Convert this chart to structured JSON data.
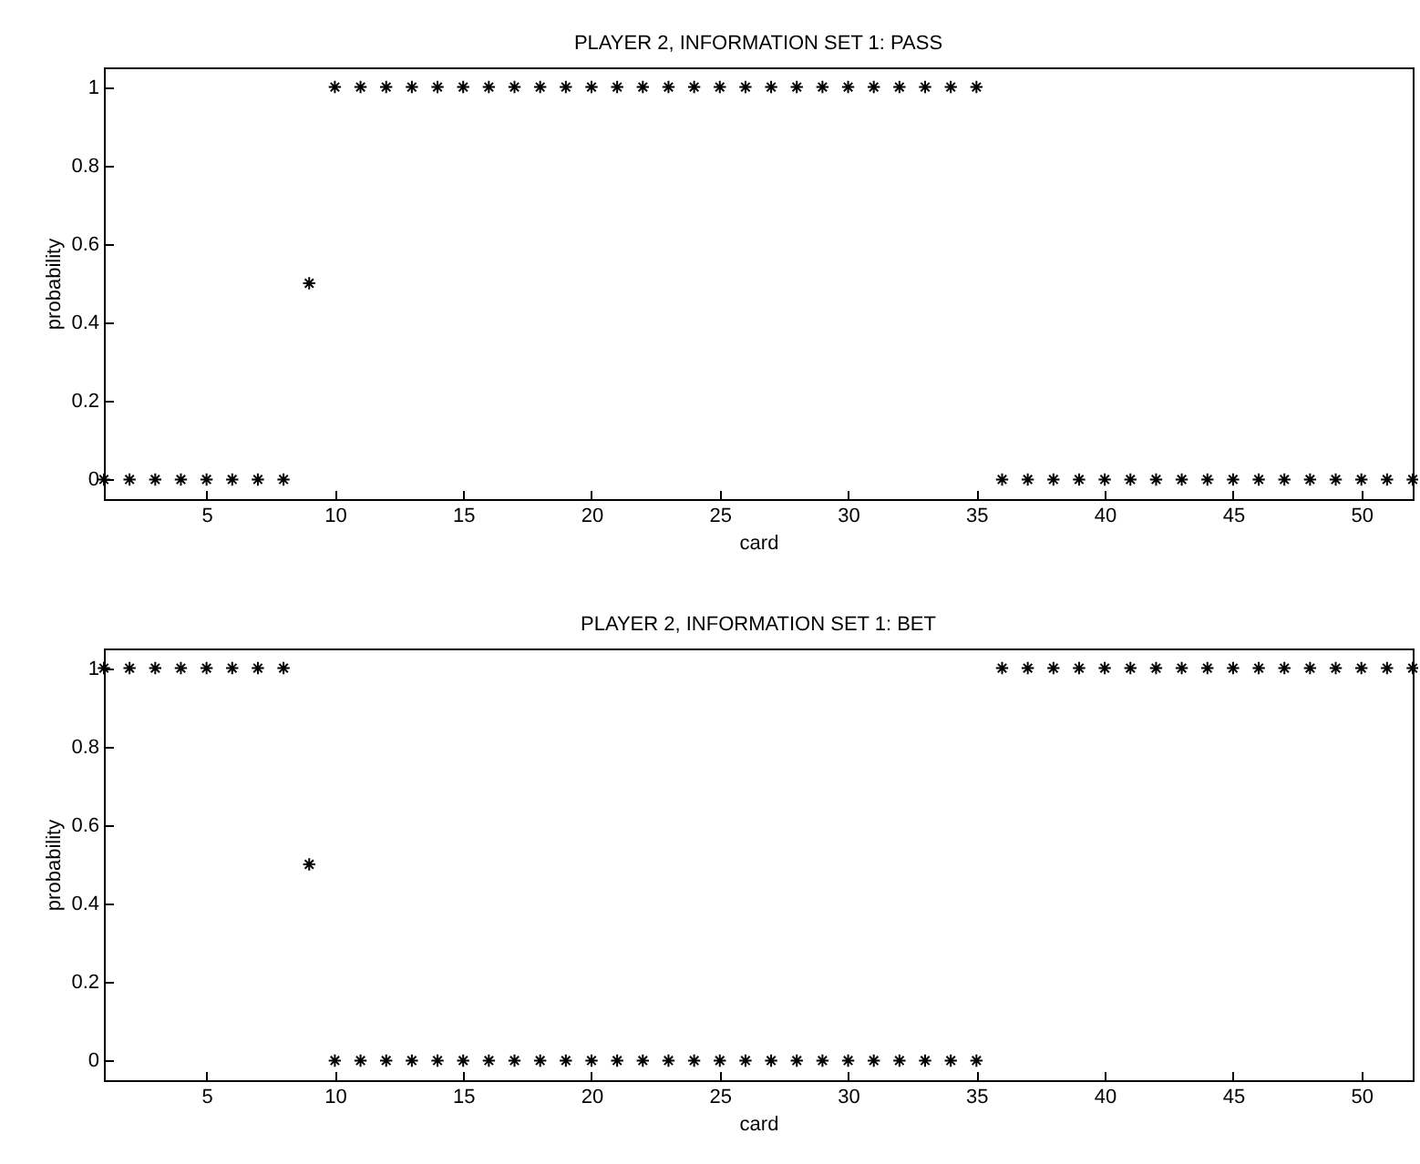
{
  "chart_data": [
    {
      "type": "scatter",
      "title": "PLAYER 2, INFORMATION SET 1: PASS",
      "xlabel": "card",
      "ylabel": "probability",
      "x": [
        1,
        2,
        3,
        4,
        5,
        6,
        7,
        8,
        9,
        10,
        11,
        12,
        13,
        14,
        15,
        16,
        17,
        18,
        19,
        20,
        21,
        22,
        23,
        24,
        25,
        26,
        27,
        28,
        29,
        30,
        31,
        32,
        33,
        34,
        35,
        36,
        37,
        38,
        39,
        40,
        41,
        42,
        43,
        44,
        45,
        46,
        47,
        48,
        49,
        50,
        51,
        52
      ],
      "series": [
        {
          "color": "#000000",
          "values": [
            0,
            0,
            0,
            0,
            0,
            0,
            0,
            0,
            0.5,
            1,
            1,
            1,
            1,
            1,
            1,
            1,
            1,
            1,
            1,
            1,
            1,
            1,
            1,
            1,
            1,
            1,
            1,
            1,
            1,
            1,
            1,
            1,
            1,
            1,
            1,
            0,
            0,
            0,
            0,
            0,
            0,
            0,
            0,
            0,
            0,
            0,
            0,
            0,
            0,
            0,
            0,
            0
          ]
        }
      ],
      "xlim": [
        1,
        52
      ],
      "ylim": [
        -0.05,
        1.05
      ],
      "xticks": [
        5,
        10,
        15,
        20,
        25,
        30,
        35,
        40,
        45,
        50
      ],
      "yticks": [
        0,
        0.2,
        0.4,
        0.6,
        0.8,
        1
      ],
      "marker": "cross"
    },
    {
      "type": "scatter",
      "title": "PLAYER 2, INFORMATION SET 1: BET",
      "xlabel": "card",
      "ylabel": "probability",
      "x": [
        1,
        2,
        3,
        4,
        5,
        6,
        7,
        8,
        9,
        10,
        11,
        12,
        13,
        14,
        15,
        16,
        17,
        18,
        19,
        20,
        21,
        22,
        23,
        24,
        25,
        26,
        27,
        28,
        29,
        30,
        31,
        32,
        33,
        34,
        35,
        36,
        37,
        38,
        39,
        40,
        41,
        42,
        43,
        44,
        45,
        46,
        47,
        48,
        49,
        50,
        51,
        52
      ],
      "series": [
        {
          "color": "#000000",
          "values": [
            1,
            1,
            1,
            1,
            1,
            1,
            1,
            1,
            0.5,
            0,
            0,
            0,
            0,
            0,
            0,
            0,
            0,
            0,
            0,
            0,
            0,
            0,
            0,
            0,
            0,
            0,
            0,
            0,
            0,
            0,
            0,
            0,
            0,
            0,
            0,
            1,
            1,
            1,
            1,
            1,
            1,
            1,
            1,
            1,
            1,
            1,
            1,
            1,
            1,
            1,
            1,
            1
          ]
        }
      ],
      "xlim": [
        1,
        52
      ],
      "ylim": [
        -0.05,
        1.05
      ],
      "xticks": [
        5,
        10,
        15,
        20,
        25,
        30,
        35,
        40,
        45,
        50
      ],
      "yticks": [
        0,
        0.2,
        0.4,
        0.6,
        0.8,
        1
      ],
      "marker": "cross"
    }
  ]
}
